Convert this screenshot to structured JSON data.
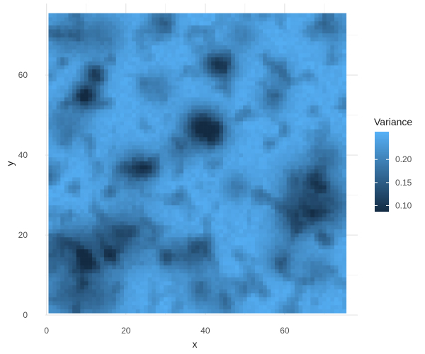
{
  "chart_data": {
    "type": "heatmap",
    "title": "",
    "xlabel": "x",
    "ylabel": "y",
    "x_range": [
      0.5,
      75.5
    ],
    "y_range": [
      0.5,
      75.5
    ],
    "xlim": [
      -0.3,
      78.4
    ],
    "ylim": [
      0,
      77.9
    ],
    "x_ticks": [
      0,
      20,
      40,
      60
    ],
    "y_ticks": [
      0,
      20,
      40,
      60
    ],
    "x_tick_labels": [
      "0",
      "20",
      "40",
      "60"
    ],
    "y_tick_labels": [
      "0",
      "20",
      "40",
      "60"
    ],
    "grid": true,
    "legend": {
      "title": "Variance",
      "placement": "right",
      "ticks": [
        0.1,
        0.15,
        0.2
      ],
      "tick_labels": [
        "0.10",
        "0.15",
        "0.20"
      ],
      "range": [
        0.087,
        0.26
      ]
    },
    "color_scale": {
      "low": "#132B43",
      "high": "#56B1F7",
      "low_value": 0.087,
      "high_value": 0.26
    },
    "grid_size": {
      "nx": 75,
      "ny": 75
    },
    "noise": {
      "seed": 7,
      "peak": 0.255,
      "spots": [
        {
          "x": 10,
          "y": 55,
          "r": 2.5,
          "depth": 0.155
        },
        {
          "x": 12.5,
          "y": 60.5,
          "r": 1.8,
          "depth": 0.13
        },
        {
          "x": 41,
          "y": 46,
          "r": 3.5,
          "depth": 0.13
        },
        {
          "x": 38,
          "y": 48,
          "r": 3,
          "depth": 0.08
        },
        {
          "x": 42,
          "y": 63,
          "r": 2.5,
          "depth": 0.1
        },
        {
          "x": 45,
          "y": 62,
          "r": 2.5,
          "depth": 0.08
        },
        {
          "x": 29,
          "y": 73,
          "r": 2.5,
          "depth": 0.08
        },
        {
          "x": 14,
          "y": 70,
          "r": 4,
          "depth": 0.06
        },
        {
          "x": 5,
          "y": 70,
          "r": 4,
          "depth": 0.06
        },
        {
          "x": 5,
          "y": 48,
          "r": 4,
          "depth": 0.06
        },
        {
          "x": 21,
          "y": 36,
          "r": 4,
          "depth": 0.06
        },
        {
          "x": 24,
          "y": 37,
          "r": 2.5,
          "depth": 0.08
        },
        {
          "x": 33,
          "y": 41,
          "r": 3,
          "depth": 0.06
        },
        {
          "x": 11,
          "y": 15,
          "r": 5,
          "depth": 0.085
        },
        {
          "x": 20,
          "y": 20,
          "r": 5,
          "depth": 0.085
        },
        {
          "x": 5,
          "y": 5,
          "r": 4,
          "depth": 0.075
        },
        {
          "x": 13,
          "y": 4,
          "r": 4,
          "depth": 0.065
        },
        {
          "x": 4,
          "y": 17,
          "r": 4,
          "depth": 0.065
        },
        {
          "x": 32,
          "y": 15,
          "r": 3,
          "depth": 0.07
        },
        {
          "x": 38,
          "y": 15,
          "r": 3,
          "depth": 0.08
        },
        {
          "x": 39,
          "y": 6,
          "r": 3,
          "depth": 0.07
        },
        {
          "x": 45,
          "y": 2,
          "r": 2.5,
          "depth": 0.05
        },
        {
          "x": 63,
          "y": 24,
          "r": 4,
          "depth": 0.09
        },
        {
          "x": 66,
          "y": 32,
          "r": 5,
          "depth": 0.085
        },
        {
          "x": 72,
          "y": 27,
          "r": 4,
          "depth": 0.07
        },
        {
          "x": 59,
          "y": 14,
          "r": 3,
          "depth": 0.065
        },
        {
          "x": 68,
          "y": 11,
          "r": 3,
          "depth": 0.06
        },
        {
          "x": 71,
          "y": 40,
          "r": 3,
          "depth": 0.055
        },
        {
          "x": 57,
          "y": 54,
          "r": 2.5,
          "depth": 0.07
        },
        {
          "x": 59,
          "y": 60,
          "r": 2.5,
          "depth": 0.05
        },
        {
          "x": 72,
          "y": 72,
          "r": 3,
          "depth": 0.06
        },
        {
          "x": 48,
          "y": 32,
          "r": 2.5,
          "depth": 0.06
        },
        {
          "x": 28,
          "y": 57,
          "r": 3,
          "depth": 0.055
        },
        {
          "x": 49,
          "y": 70,
          "r": 3,
          "depth": 0.05
        }
      ]
    }
  }
}
